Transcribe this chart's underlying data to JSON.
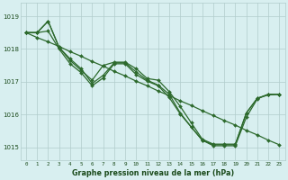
{
  "xlabel_label": "Graphe pression niveau de la mer (hPa)",
  "hours": [
    0,
    1,
    2,
    3,
    4,
    5,
    6,
    7,
    8,
    9,
    10,
    11,
    12,
    13,
    14,
    15,
    16,
    17,
    18,
    19,
    20,
    21,
    22,
    23
  ],
  "line1": [
    1018.5,
    1018.5,
    1018.85,
    1018.05,
    1017.65,
    1017.35,
    1017.05,
    1017.5,
    1017.6,
    1017.6,
    1017.4,
    1017.1,
    1017.05,
    1016.7,
    1016.25,
    1015.75,
    1015.25,
    1015.1,
    1015.1,
    1015.1,
    1016.05,
    1016.5,
    1016.6,
    1016.62
  ],
  "line2": [
    1018.5,
    1018.5,
    1018.85,
    1018.05,
    1017.7,
    1017.4,
    1016.95,
    1017.2,
    1017.58,
    1017.58,
    1017.3,
    1017.05,
    1016.9,
    1016.62,
    1016.05,
    1015.62,
    1015.22,
    1015.08,
    1015.08,
    1015.08,
    1016.05,
    1016.5,
    1016.62,
    1016.62
  ],
  "line3": [
    1018.5,
    1018.5,
    1018.55,
    1018.0,
    1017.55,
    1017.28,
    1016.88,
    1017.12,
    1017.55,
    1017.55,
    1017.22,
    1017.02,
    1016.88,
    1016.52,
    1016.02,
    1015.62,
    1015.22,
    1015.05,
    1015.05,
    1015.05,
    1015.92,
    1016.48,
    1016.62,
    1016.62
  ],
  "line_straight": [
    1018.5,
    1018.35,
    1018.22,
    1018.08,
    1017.92,
    1017.78,
    1017.62,
    1017.48,
    1017.32,
    1017.18,
    1017.02,
    1016.88,
    1016.72,
    1016.58,
    1016.42,
    1016.28,
    1016.12,
    1015.97,
    1015.82,
    1015.68,
    1015.52,
    1015.38,
    1015.22,
    1015.08
  ],
  "line_color": "#2d6a2d",
  "background_color": "#d8eff0",
  "grid_color": "#b0cccc",
  "text_color": "#1a4a1a",
  "ylim_min": 1014.6,
  "ylim_max": 1019.4,
  "yticks": [
    1015,
    1016,
    1017,
    1018,
    1019
  ],
  "marker": "D",
  "marker_size": 2.0,
  "linewidth": 0.9,
  "figwidth": 3.2,
  "figheight": 2.0,
  "dpi": 100
}
